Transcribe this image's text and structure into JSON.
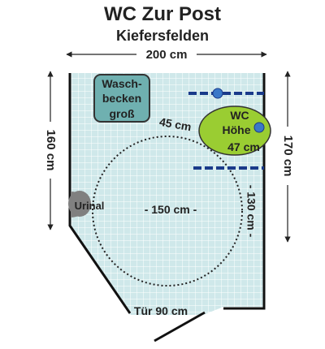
{
  "title": "WC Zur Post",
  "subtitle": "Kiefersfelden",
  "dimensions": {
    "width_top": "200 cm",
    "height_left": "160 cm",
    "height_right": "170 cm",
    "turning_circle": "- 150 cm -",
    "wc_depth": "- 130 cm -",
    "sink_to_wc": "45 cm",
    "door": "Tür 90 cm"
  },
  "fixtures": {
    "sink_line1": "Wasch-",
    "sink_line2": "becken",
    "sink_line3": "groß",
    "wc_line1": "WC",
    "wc_line2": "Höhe",
    "wc_line3": "47 cm",
    "urinal": "Urinal"
  },
  "colors": {
    "floor_tile": "#cfe8ea",
    "grid_line": "#ffffff",
    "wall": "#111111",
    "sink_fill": "#6fb0b0",
    "wc_fill": "#9acd32",
    "urinal_fill": "#808080",
    "grab_bar": "#1a3a8a",
    "grab_knob": "#3a78c8"
  }
}
